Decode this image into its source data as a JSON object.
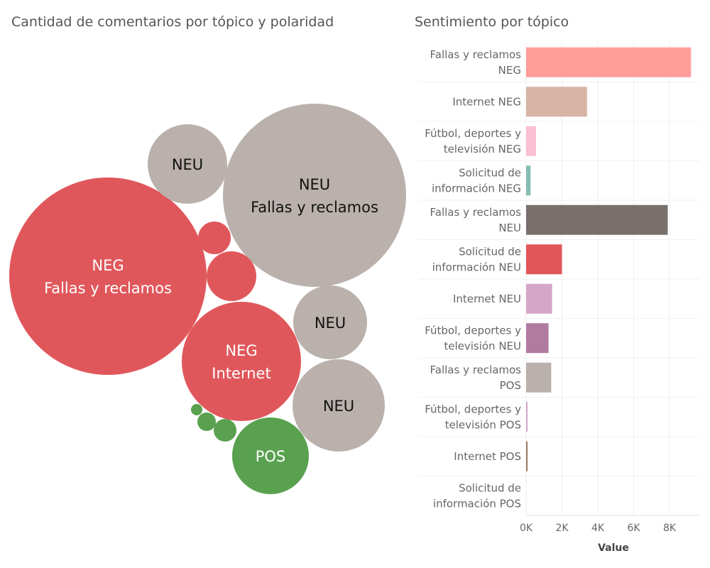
{
  "chart_data": [
    {
      "type": "bubble",
      "title": "Cantidad de comentarios por tópico y polaridad",
      "colors": {
        "NEG": "#e0575b",
        "NEU": "#bab0ac",
        "POS": "#59a14f"
      },
      "bubbles": [
        {
          "polarity": "NEU",
          "topic": "Fallas y reclamos",
          "label": [
            "NEU",
            "Fallas y reclamos"
          ]
        },
        {
          "polarity": "NEG",
          "topic": "Fallas y reclamos",
          "label": [
            "NEG",
            "Fallas y reclamos"
          ]
        },
        {
          "polarity": "NEG",
          "topic": "Internet",
          "label": [
            "NEG",
            "Internet"
          ]
        },
        {
          "polarity": "NEU",
          "topic": "",
          "label": [
            "NEU"
          ]
        },
        {
          "polarity": "NEU",
          "topic": "",
          "label": [
            "NEU"
          ]
        },
        {
          "polarity": "NEU",
          "topic": "",
          "label": [
            "NEU"
          ]
        },
        {
          "polarity": "POS",
          "topic": "",
          "label": [
            "POS"
          ]
        },
        {
          "polarity": "NEG",
          "topic": "",
          "label": []
        },
        {
          "polarity": "NEG",
          "topic": "",
          "label": []
        },
        {
          "polarity": "POS",
          "topic": "",
          "label": []
        },
        {
          "polarity": "POS",
          "topic": "",
          "label": []
        },
        {
          "polarity": "POS",
          "topic": "",
          "label": []
        }
      ]
    },
    {
      "type": "bar",
      "orientation": "horizontal",
      "title": "Sentimiento por tópico",
      "xlabel": "Value",
      "ylabel": "",
      "xlim": [
        0,
        9400
      ],
      "xticks": [
        0,
        2000,
        4000,
        6000,
        8000
      ],
      "xtick_labels": [
        "0K",
        "2K",
        "4K",
        "6K",
        "8K"
      ],
      "grid": true,
      "categories": [
        [
          "Fallas y reclamos",
          "NEG"
        ],
        [
          "Internet NEG"
        ],
        [
          "Fútbol, deportes y",
          "televisión NEG"
        ],
        [
          "Solicitud de",
          "información NEG"
        ],
        [
          "Fallas y reclamos",
          "NEU"
        ],
        [
          "Solicitud de",
          "información NEU"
        ],
        [
          "Internet NEU"
        ],
        [
          "Fútbol, deportes y",
          "televisión NEU"
        ],
        [
          "Fallas y reclamos",
          "POS"
        ],
        [
          "Fútbol, deportes y",
          "televisión POS"
        ],
        [
          "Internet POS"
        ],
        [
          "Solicitud de",
          "información POS"
        ]
      ],
      "values": [
        9200,
        3400,
        550,
        250,
        7900,
        2000,
        1450,
        1250,
        1400,
        80,
        40,
        0
      ],
      "colors": [
        "#ff9d9a",
        "#d7b5a6",
        "#fabfd2",
        "#86bcb6",
        "#79706e",
        "#e15759",
        "#d4a6c8",
        "#b07aa1",
        "#bab0ac",
        "#d4a6c8",
        "#9d7660",
        "#cccccc"
      ]
    }
  ]
}
